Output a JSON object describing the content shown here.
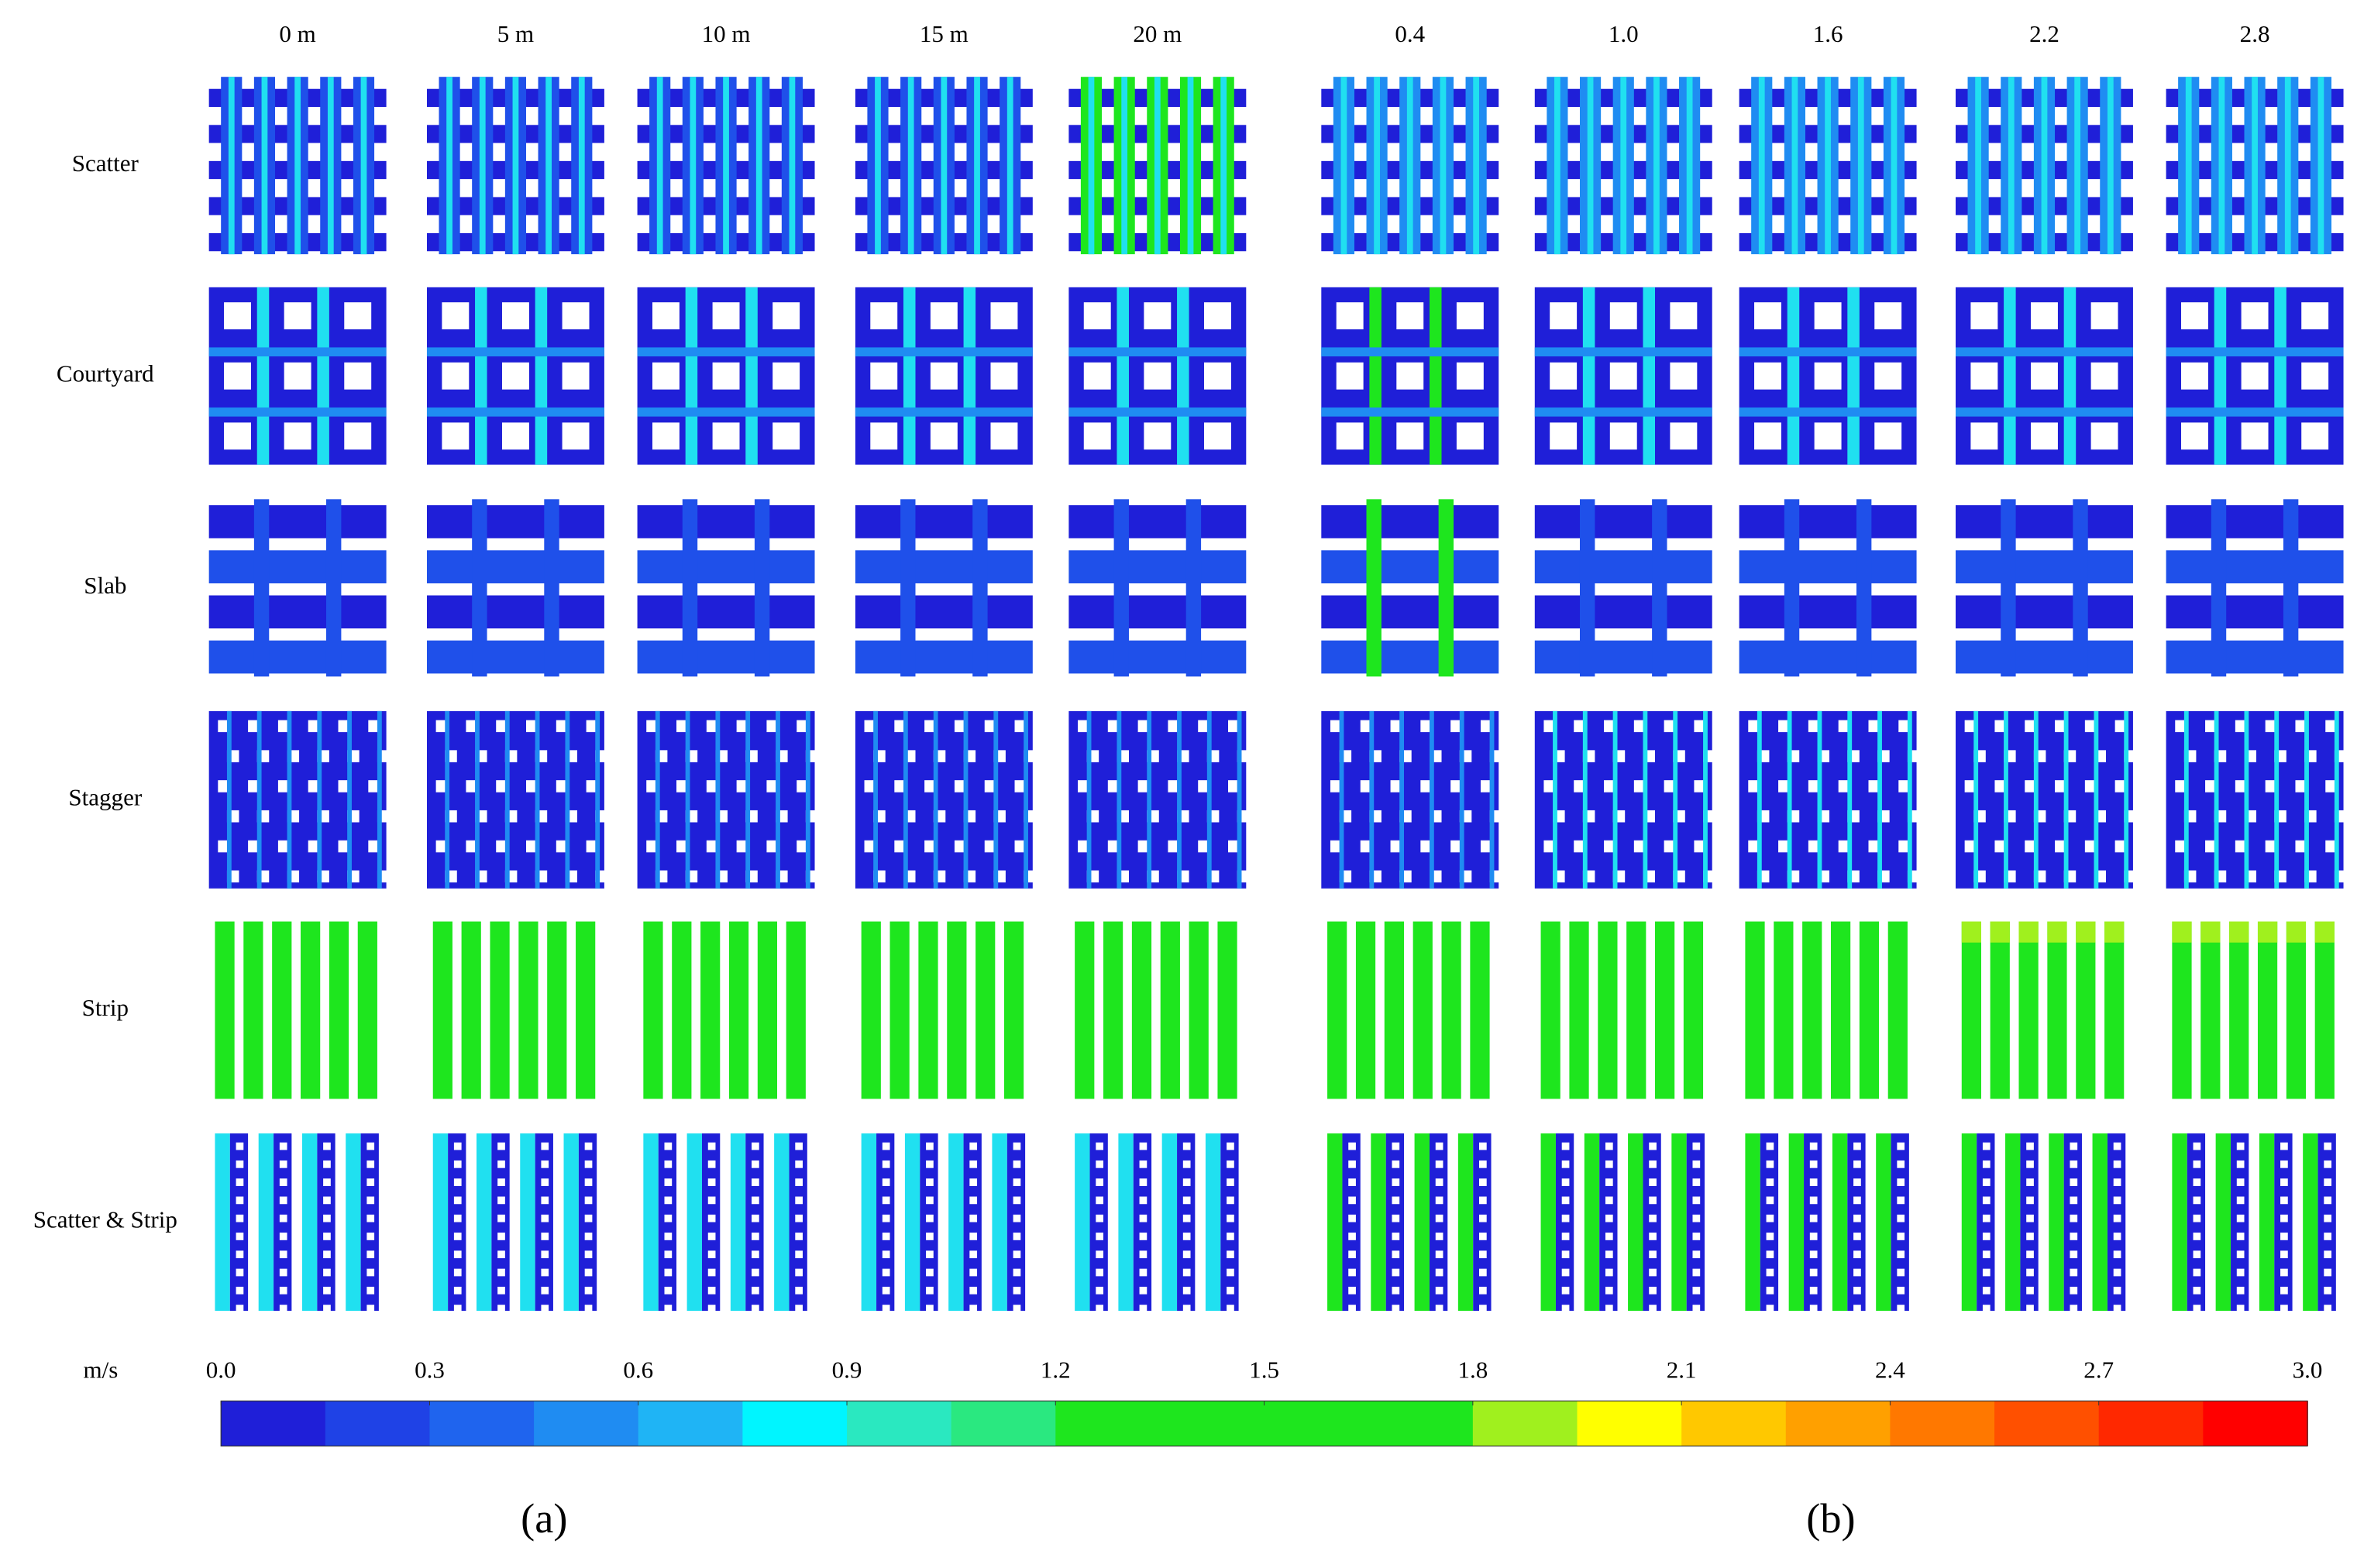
{
  "columns_a": [
    "0 m",
    "5 m",
    "10 m",
    "15 m",
    "20 m"
  ],
  "columns_b": [
    "0.4",
    "1.0",
    "1.6",
    "2.2",
    "2.8"
  ],
  "rows": [
    "Scatter",
    "Courtyard",
    "Slab",
    "Stagger",
    "Strip",
    "Scatter & Strip"
  ],
  "colorbar": {
    "unit": "m/s",
    "lim": [
      0,
      3
    ],
    "ticks": [
      {
        "value": 0,
        "label": "0.0"
      },
      0.3,
      0.6,
      0.9,
      1.2,
      1.5,
      1.8,
      2.1,
      2.4,
      2.7,
      {
        "value": 3,
        "label": "3.0"
      }
    ],
    "colors": [
      "#1f1fd8",
      "#1f42e6",
      "#1f64ee",
      "#1f8cf2",
      "#1fb4f5",
      "#00f5ff",
      "#2ae8c0",
      "#2ae880",
      "#1ee61e",
      "#1ee61e",
      "#1ee61e",
      "#1ee61e",
      "#a0f01e",
      "#ffff00",
      "#ffc800",
      "#ffa000",
      "#ff7800",
      "#ff5000",
      "#ff2800",
      "#ff0000"
    ]
  },
  "panels": [
    "(a)",
    "(b)"
  ]
}
